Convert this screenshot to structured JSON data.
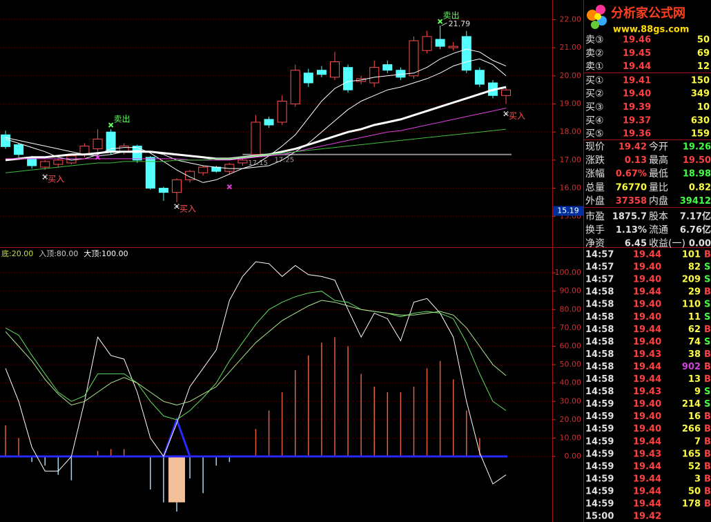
{
  "chart_data": [
    {
      "type": "candlestick",
      "open": [
        17.9,
        17.55,
        17.1,
        16.75,
        16.85,
        16.9,
        17.2,
        17.4,
        18.0,
        17.3,
        17.5,
        17.1,
        16.0,
        15.85,
        16.3,
        16.55,
        16.75,
        16.6,
        16.9,
        17.2,
        18.45,
        18.35,
        19.0,
        20.1,
        20.2,
        19.95,
        20.3,
        19.8,
        19.75,
        20.4,
        20.2,
        20.0,
        20.9,
        21.3,
        21.0,
        21.4,
        20.2,
        19.75,
        19.3
      ],
      "close": [
        17.48,
        17.2,
        16.8,
        16.95,
        17.0,
        17.15,
        17.5,
        17.75,
        17.3,
        17.5,
        17.0,
        16.0,
        15.85,
        16.3,
        16.6,
        16.75,
        16.6,
        16.85,
        17.0,
        18.35,
        18.25,
        19.1,
        20.2,
        19.75,
        20.05,
        20.5,
        19.5,
        19.9,
        20.3,
        20.2,
        19.95,
        21.25,
        21.4,
        21.05,
        21.05,
        20.2,
        19.7,
        19.3,
        19.5
      ],
      "high": [
        18.05,
        17.6,
        17.15,
        17.0,
        17.05,
        17.2,
        17.6,
        18.1,
        18.1,
        17.6,
        17.55,
        17.15,
        16.05,
        16.35,
        16.65,
        16.8,
        16.8,
        16.9,
        17.1,
        18.6,
        18.55,
        19.3,
        20.4,
        20.25,
        20.35,
        20.85,
        20.4,
        20.0,
        20.55,
        20.55,
        20.3,
        21.4,
        21.6,
        21.79,
        21.2,
        21.6,
        20.3,
        19.85,
        19.6
      ],
      "low": [
        17.4,
        17.1,
        16.7,
        16.65,
        16.75,
        16.85,
        17.1,
        17.3,
        17.2,
        17.2,
        16.9,
        15.95,
        15.55,
        15.5,
        16.2,
        16.45,
        16.55,
        16.5,
        16.8,
        17.1,
        18.15,
        18.25,
        18.9,
        19.6,
        19.95,
        19.85,
        19.4,
        19.7,
        19.6,
        20.1,
        19.85,
        19.9,
        20.8,
        20.95,
        20.9,
        20.1,
        19.6,
        19.2,
        19.0
      ],
      "up_color": "#ff5050",
      "down_color": "#54ffff",
      "lines": [
        {
          "color": "#ffffff",
          "width": 1,
          "values": [
            17.75,
            17.6,
            17.45,
            17.3,
            17.1,
            17.0,
            17.05,
            17.2,
            17.4,
            17.45,
            17.45,
            17.25,
            16.95,
            16.65,
            16.4,
            16.2,
            16.3,
            16.5,
            16.7,
            16.85,
            17.15,
            17.5,
            17.9,
            18.5,
            19.1,
            19.55,
            19.8,
            19.85,
            19.95,
            20.0,
            20.05,
            20.1,
            20.3,
            20.6,
            20.8,
            20.95,
            20.85,
            20.55,
            20.35
          ]
        },
        {
          "color": "#ffffff",
          "width": 1,
          "values": [
            17.8,
            17.7,
            17.6,
            17.5,
            17.4,
            17.3,
            17.2,
            17.15,
            17.2,
            17.3,
            17.35,
            17.3,
            17.2,
            17.0,
            16.9,
            16.8,
            16.75,
            16.7,
            16.7,
            16.75,
            16.8,
            17.0,
            17.3,
            17.6,
            18.0,
            18.4,
            18.8,
            19.1,
            19.3,
            19.5,
            19.6,
            19.75,
            19.9,
            20.1,
            20.35,
            20.5,
            20.6,
            20.4,
            20.0
          ]
        },
        {
          "color": "#ffffff",
          "width": 3,
          "values": [
            17.0,
            17.05,
            17.1,
            17.1,
            17.15,
            17.2,
            17.2,
            17.25,
            17.3,
            17.3,
            17.3,
            17.3,
            17.25,
            17.2,
            17.15,
            17.1,
            17.05,
            17.05,
            17.1,
            17.15,
            17.2,
            17.3,
            17.4,
            17.55,
            17.7,
            17.85,
            18.0,
            18.1,
            18.25,
            18.35,
            18.45,
            18.6,
            18.75,
            18.9,
            19.05,
            19.2,
            19.35,
            19.5,
            19.6
          ]
        },
        {
          "color": "#e040e0",
          "width": 1,
          "values": [
            17.05,
            17.05,
            17.05,
            17.05,
            17.05,
            17.05,
            17.05,
            17.05,
            17.05,
            17.05,
            17.05,
            17.05,
            17.05,
            17.05,
            17.0,
            17.0,
            17.0,
            17.0,
            17.05,
            17.1,
            17.15,
            17.2,
            17.3,
            17.4,
            17.5,
            17.6,
            17.7,
            17.8,
            17.9,
            18.0,
            18.05,
            18.15,
            18.25,
            18.35,
            18.45,
            18.55,
            18.65,
            18.75,
            18.85
          ]
        },
        {
          "color": "#40c040",
          "width": 1,
          "values": [
            16.55,
            16.6,
            16.65,
            16.7,
            16.75,
            16.8,
            16.85,
            16.9,
            16.9,
            16.95,
            16.95,
            16.95,
            16.95,
            17.0,
            17.0,
            17.0,
            17.05,
            17.05,
            17.1,
            17.15,
            17.2,
            17.25,
            17.3,
            17.35,
            17.4,
            17.45,
            17.5,
            17.55,
            17.6,
            17.65,
            17.7,
            17.75,
            17.8,
            17.85,
            17.9,
            17.95,
            18.0,
            18.05,
            18.1
          ]
        }
      ],
      "level": {
        "value": 17.2,
        "from": 18,
        "to": 38,
        "color": "#909090"
      },
      "level_labels": [
        {
          "value": 17.15,
          "label": "17.15"
        },
        {
          "value": 17.25,
          "label": "17.25"
        }
      ],
      "signals": [
        {
          "text": "卖出",
          "index": 8,
          "value": 18.1,
          "color": "#60ff60"
        },
        {
          "text": "卖出",
          "index": 33,
          "value": 21.79,
          "color": "#60ff60"
        },
        {
          "text": "买入",
          "index": 3,
          "value": 16.55,
          "color": "#ff5050"
        },
        {
          "text": "买入",
          "index": 13,
          "value": 15.5,
          "color": "#ff5050"
        },
        {
          "text": "买入",
          "index": 38,
          "value": 18.8,
          "color": "#ff5050"
        }
      ],
      "cross_marks": [
        {
          "index": 7,
          "value": 17.1
        },
        {
          "index": 17,
          "value": 16.05
        }
      ],
      "high_label": {
        "index": 33,
        "value": 21.79,
        "label": "21.79"
      },
      "price_tag": {
        "value": 15.19,
        "label": "15.19"
      },
      "ylim": [
        13.9,
        22.7
      ],
      "yticks": [
        {
          "value": 15,
          "label": "15.00"
        },
        {
          "value": 16,
          "label": "16.00"
        },
        {
          "value": 17,
          "label": "17.00"
        },
        {
          "value": 18,
          "label": "18.00"
        },
        {
          "value": 19,
          "label": "19.00"
        },
        {
          "value": 20,
          "label": "20.00"
        },
        {
          "value": 21,
          "label": "21.00"
        },
        {
          "value": 22,
          "label": "22.00"
        }
      ],
      "grid": true
    },
    {
      "type": "indicator",
      "header": [
        {
          "text": "底:20.00",
          "color": "#c0e040"
        },
        {
          "text": "入顶:80.00",
          "color": "#d0d0d0"
        },
        {
          "text": "大顶:100.00",
          "color": "#ffffff"
        }
      ],
      "series": [
        {
          "color": "#ffffff",
          "values": [
            48,
            30,
            5,
            -8,
            -8,
            0,
            30,
            65,
            55,
            53,
            35,
            10,
            0,
            18,
            38,
            48,
            58,
            85,
            98,
            106,
            105,
            98,
            104,
            99,
            98,
            96,
            80,
            65,
            78,
            75,
            63,
            84,
            86,
            78,
            65,
            30,
            2,
            -15,
            -10
          ]
        },
        {
          "color": "#60e060",
          "values": [
            70,
            66,
            55,
            45,
            35,
            30,
            33,
            45,
            45,
            45,
            40,
            30,
            22,
            20,
            25,
            32,
            40,
            52,
            62,
            72,
            80,
            84,
            87,
            89,
            90,
            85,
            84,
            80,
            79,
            78,
            76,
            78,
            79,
            78,
            75,
            62,
            45,
            30,
            25
          ]
        },
        {
          "color": "#b0e890",
          "values": [
            68,
            60,
            52,
            42,
            34,
            28,
            30,
            35,
            40,
            43,
            40,
            35,
            30,
            28,
            30,
            34,
            38,
            46,
            54,
            62,
            68,
            74,
            78,
            82,
            85,
            84,
            82,
            80,
            79,
            78,
            77,
            77,
            78,
            79,
            77,
            70,
            60,
            50,
            44
          ]
        }
      ],
      "bars": [
        17,
        10,
        -3,
        -5,
        -10,
        -13,
        0,
        3,
        4,
        4,
        0,
        -18,
        -25,
        -30,
        -12,
        -20,
        -5,
        -3,
        0,
        15,
        25,
        35,
        47,
        55,
        62,
        65,
        60,
        45,
        38,
        35,
        35,
        38,
        48,
        52,
        42,
        25,
        10,
        0,
        0
      ],
      "bar_up_color": "#e06040",
      "bar_down_color": "#a8d8f0",
      "signal": {
        "color": "#2828ff",
        "values": [
          null,
          null,
          null,
          null,
          null,
          null,
          null,
          null,
          null,
          null,
          null,
          null,
          0,
          20,
          0,
          null,
          null,
          null,
          null,
          null,
          null,
          null,
          null,
          null,
          null,
          null,
          null,
          null,
          null,
          null,
          null,
          null,
          null,
          null,
          null,
          null,
          null,
          null,
          null
        ]
      },
      "block": {
        "color": "#f4c09a",
        "index": 13,
        "value": -25
      },
      "ylim": [
        -35.7,
        113.2
      ],
      "yticks": [
        {
          "value": 0,
          "label": "0.00"
        },
        {
          "value": 10,
          "label": "10.00"
        },
        {
          "value": 20,
          "label": "20.00"
        },
        {
          "value": 30,
          "label": "30.00"
        },
        {
          "value": 40,
          "label": "40.00"
        },
        {
          "value": 50,
          "label": "50.00"
        },
        {
          "value": 60,
          "label": "60.00"
        },
        {
          "value": 70,
          "label": "70.00"
        },
        {
          "value": 80,
          "label": "80.00"
        },
        {
          "value": 90,
          "label": "90.00"
        },
        {
          "value": 100,
          "label": "100.00"
        }
      ],
      "grid": true
    }
  ],
  "logo": {
    "title": "分析家公式网",
    "url": "www.88gs.com"
  },
  "order_book": [
    {
      "label": "卖③",
      "price": "19.46",
      "volume": "50"
    },
    {
      "label": "卖②",
      "price": "19.45",
      "volume": "69"
    },
    {
      "label": "卖①",
      "price": "19.44",
      "volume": "12"
    },
    {
      "label": "买①",
      "price": "19.41",
      "volume": "150"
    },
    {
      "label": "买②",
      "price": "19.40",
      "volume": "349"
    },
    {
      "label": "买③",
      "price": "19.39",
      "volume": "10"
    },
    {
      "label": "买④",
      "price": "19.37",
      "volume": "630"
    },
    {
      "label": "买⑤",
      "price": "19.36",
      "volume": "159"
    }
  ],
  "quote": [
    [
      {
        "label": "现价",
        "value": "19.42",
        "color": "#ff4040"
      },
      {
        "label": "今开",
        "value": "19.26",
        "color": "#40ff40"
      }
    ],
    [
      {
        "label": "涨跌",
        "value": "0.13",
        "color": "#ff4040"
      },
      {
        "label": "最高",
        "value": "19.50",
        "color": "#ff4040"
      }
    ],
    [
      {
        "label": "涨幅",
        "value": "0.67%",
        "color": "#ff4040"
      },
      {
        "label": "最低",
        "value": "18.98",
        "color": "#40ff40"
      }
    ],
    [
      {
        "label": "总量",
        "value": "76770",
        "color": "#ffff40"
      },
      {
        "label": "量比",
        "value": "0.82",
        "color": "#ffff40"
      }
    ],
    [
      {
        "label": "外盘",
        "value": "37358",
        "color": "#ff4040"
      },
      {
        "label": "内盘",
        "value": "39412",
        "color": "#40ff40"
      }
    ],
    [
      {
        "label": "市盈",
        "value": "1875.7",
        "color": "#e0e0e0"
      },
      {
        "label": "股本",
        "value": "7.17亿",
        "color": "#e0e0e0"
      }
    ],
    [
      {
        "label": "换手",
        "value": "1.13%",
        "color": "#e0e0e0"
      },
      {
        "label": "流通",
        "value": "6.76亿",
        "color": "#e0e0e0"
      }
    ],
    [
      {
        "label": "净资",
        "value": "6.45",
        "color": "#e0e0e0"
      },
      {
        "label": "收益(一)",
        "value": "0.00",
        "color": "#e0e0e0"
      }
    ]
  ],
  "trades": [
    {
      "time": "14:57",
      "price": "19.44",
      "volume": "101",
      "side": "B"
    },
    {
      "time": "14:57",
      "price": "19.40",
      "volume": "82",
      "side": "S"
    },
    {
      "time": "14:57",
      "price": "19.40",
      "volume": "209",
      "side": "S"
    },
    {
      "time": "14:58",
      "price": "19.44",
      "volume": "29",
      "side": "B"
    },
    {
      "time": "14:58",
      "price": "19.40",
      "volume": "110",
      "side": "S"
    },
    {
      "time": "14:58",
      "price": "19.40",
      "volume": "11",
      "side": "S"
    },
    {
      "time": "14:58",
      "price": "19.44",
      "volume": "62",
      "side": "B"
    },
    {
      "time": "14:58",
      "price": "19.40",
      "volume": "74",
      "side": "S"
    },
    {
      "time": "14:58",
      "price": "19.43",
      "volume": "38",
      "side": "B"
    },
    {
      "time": "14:58",
      "price": "19.44",
      "volume": "902",
      "side": "B",
      "volume_color": "#d040e0"
    },
    {
      "time": "14:58",
      "price": "19.44",
      "volume": "13",
      "side": "B"
    },
    {
      "time": "14:58",
      "price": "19.43",
      "volume": "9",
      "side": "S"
    },
    {
      "time": "14:59",
      "price": "19.40",
      "volume": "214",
      "side": "S"
    },
    {
      "time": "14:59",
      "price": "19.40",
      "volume": "16",
      "side": "B"
    },
    {
      "time": "14:59",
      "price": "19.40",
      "volume": "266",
      "side": "B"
    },
    {
      "time": "14:59",
      "price": "19.44",
      "volume": "7",
      "side": "B"
    },
    {
      "time": "14:59",
      "price": "19.43",
      "volume": "165",
      "side": "B"
    },
    {
      "time": "14:59",
      "price": "19.44",
      "volume": "52",
      "side": "B"
    },
    {
      "time": "14:59",
      "price": "19.44",
      "volume": "3",
      "side": "B"
    },
    {
      "time": "14:59",
      "price": "19.44",
      "volume": "50",
      "side": "B"
    },
    {
      "time": "14:59",
      "price": "19.44",
      "volume": "178",
      "side": "B"
    },
    {
      "time": "15:00",
      "price": "19.42"
    }
  ]
}
